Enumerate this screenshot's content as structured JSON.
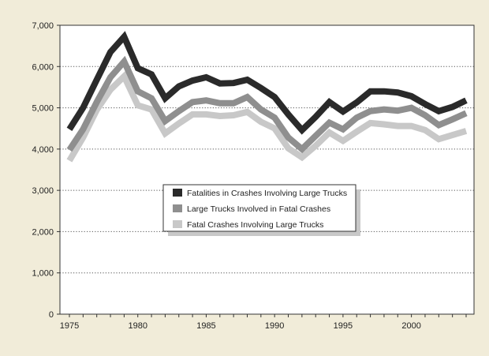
{
  "chart_data": {
    "type": "line",
    "title": "",
    "xlabel": "",
    "ylabel": "",
    "xlim": [
      1975,
      2004
    ],
    "ylim": [
      0,
      7000
    ],
    "x_ticks": [
      1975,
      1980,
      1985,
      1990,
      1995,
      2000
    ],
    "y_ticks": [
      0,
      1000,
      2000,
      3000,
      4000,
      5000,
      6000,
      7000
    ],
    "y_tick_labels": [
      "0",
      "1,000",
      "2,000",
      "3,000",
      "4,000",
      "5,000",
      "6,000",
      "7,000"
    ],
    "grid": "horizontal dotted",
    "legend_position": "center",
    "x": [
      1975,
      1976,
      1977,
      1978,
      1979,
      1980,
      1981,
      1982,
      1983,
      1984,
      1985,
      1986,
      1987,
      1988,
      1989,
      1990,
      1991,
      1992,
      1993,
      1994,
      1995,
      1996,
      1997,
      1998,
      1999,
      2000,
      2001,
      2002,
      2003,
      2004
    ],
    "series": [
      {
        "name": "Fatal Crashes Involving Large Trucks",
        "color": "#c8c8c8",
        "values": [
          3720,
          4280,
          4950,
          5440,
          5760,
          5060,
          4960,
          4380,
          4620,
          4840,
          4840,
          4800,
          4820,
          4900,
          4660,
          4500,
          4020,
          3800,
          4080,
          4400,
          4200,
          4420,
          4630,
          4600,
          4560,
          4560,
          4460,
          4240,
          4340,
          4440
        ]
      },
      {
        "name": "Large Trucks Involved in Fatal Crashes",
        "color": "#8f8f8f",
        "values": [
          3980,
          4480,
          5140,
          5740,
          6120,
          5400,
          5230,
          4680,
          4920,
          5140,
          5180,
          5110,
          5110,
          5260,
          4960,
          4760,
          4280,
          4000,
          4320,
          4640,
          4480,
          4760,
          4920,
          4960,
          4930,
          5000,
          4820,
          4580,
          4720,
          4870
        ]
      },
      {
        "name": "Fatalities in Crashes Involving Large Trucks",
        "color": "#2a2a2a",
        "values": [
          4480,
          5000,
          5680,
          6350,
          6720,
          5960,
          5810,
          5230,
          5520,
          5660,
          5740,
          5590,
          5600,
          5680,
          5480,
          5260,
          4840,
          4460,
          4780,
          5140,
          4910,
          5130,
          5400,
          5400,
          5370,
          5280,
          5090,
          4920,
          5020,
          5180
        ]
      }
    ]
  }
}
